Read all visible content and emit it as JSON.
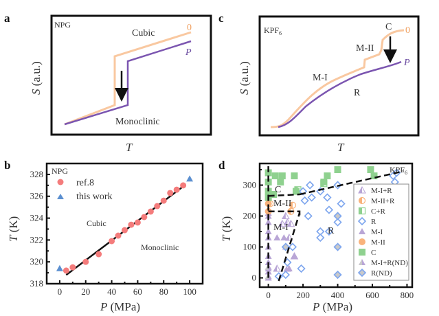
{
  "colors": {
    "orange_curve": "#f9c8a0",
    "purple_curve": "#7b55b0",
    "ref8_marker": "#f47c7c",
    "thiswork_marker": "#5b8fd0",
    "mi_marker": "#b9a6d6",
    "mii_marker": "#f9b37c",
    "c_marker": "#8fd18f",
    "r_marker": "#7ea6ee",
    "nd_fill": "#c9c9c9",
    "orange_label": "#f0a060",
    "purple_label": "#6a4aa0"
  },
  "chart_data": [
    {
      "panel": "a",
      "type": "line",
      "title": "NPG",
      "xlabel": "T",
      "ylabel": "S (a.u.)",
      "annotations": [
        "Cubic",
        "Monoclinic"
      ],
      "series": [
        {
          "name": "0",
          "x": [
            0,
            0.35,
            0.35,
            1.0
          ],
          "y": [
            0,
            0.17,
            0.73,
            0.95
          ]
        },
        {
          "name": "P",
          "x": [
            0,
            0.45,
            0.45,
            1.0
          ],
          "y": [
            0,
            0.13,
            0.64,
            0.87
          ]
        }
      ],
      "arrow": "pressure lowers entropy"
    },
    {
      "panel": "b",
      "type": "scatter",
      "title": "NPG",
      "xlabel": "P (MPa)",
      "ylabel": "T (K)",
      "xlim": [
        -10,
        110
      ],
      "ylim": [
        318,
        329
      ],
      "xticks": [
        0,
        20,
        40,
        60,
        80,
        100
      ],
      "yticks": [
        318,
        320,
        322,
        324,
        326,
        328
      ],
      "legend": [
        "ref.8",
        "this work"
      ],
      "legend_position": "top-left",
      "annotations": [
        "Cubic",
        "Monoclinic"
      ],
      "series": [
        {
          "name": "ref.8",
          "x": [
            5,
            10,
            20,
            30,
            40,
            45,
            50,
            55,
            60,
            65,
            70,
            75,
            80,
            85,
            90,
            95
          ],
          "y": [
            319.2,
            319.5,
            320.0,
            320.7,
            321.9,
            322.4,
            322.9,
            323.4,
            323.6,
            324.1,
            324.6,
            325.1,
            325.6,
            326.3,
            326.6,
            327.0
          ]
        },
        {
          "name": "this work",
          "x": [
            0,
            100
          ],
          "y": [
            319.4,
            327.6
          ]
        }
      ],
      "fit_line": {
        "x": [
          5,
          95
        ],
        "y": [
          318.8,
          326.9
        ]
      }
    },
    {
      "panel": "c",
      "type": "line",
      "title": "KPF6",
      "xlabel": "T",
      "ylabel": "S (a.u.)",
      "annotations": [
        "M-I",
        "M-II",
        "C",
        "R"
      ],
      "series": [
        {
          "name": "0",
          "desc": "sigmoidal rise with steps at M-I→M-II and M-II→C"
        },
        {
          "name": "P",
          "desc": "smooth sigmoidal rise through R phase"
        }
      ]
    },
    {
      "panel": "d",
      "type": "scatter",
      "title": "KPF6",
      "xlabel": "P (MPa)",
      "ylabel": "T (K)",
      "xlim": [
        -50,
        830
      ],
      "ylim": [
        -30,
        370
      ],
      "xticks": [
        0,
        200,
        400,
        600,
        800
      ],
      "yticks": [
        0,
        100,
        200,
        300
      ],
      "legend_position": "right",
      "legend": [
        "M-I+R",
        "M-II+R",
        "C+R",
        "R",
        "M-I",
        "M-II",
        "C",
        "M-I+R(ND)",
        "R(ND)"
      ],
      "annotations": [
        "C",
        "M-II",
        "M-I",
        "R"
      ],
      "series": [
        {
          "name": "M-I+R",
          "x": [
            50,
            80,
            100,
            110,
            120,
            130,
            150,
            110
          ],
          "y": [
            30,
            175,
            200,
            180,
            130,
            175,
            70,
            30
          ]
        },
        {
          "name": "M-II+R",
          "x": [
            10,
            130,
            140
          ],
          "y": [
            240,
            215,
            235
          ]
        },
        {
          "name": "C+R",
          "x": [
            170,
            320
          ],
          "y": [
            285,
            305
          ]
        },
        {
          "name": "R",
          "x": [
            60,
            100,
            110,
            140,
            190,
            200,
            210,
            230,
            240,
            250,
            300,
            300,
            300,
            340,
            350,
            350,
            400,
            400,
            420,
            720,
            730,
            740
          ],
          "y": [
            5,
            10,
            50,
            100,
            30,
            280,
            250,
            200,
            300,
            260,
            280,
            150,
            130,
            260,
            220,
            150,
            300,
            180,
            240,
            330,
            310,
            340
          ]
        },
        {
          "name": "M-I",
          "x": [
            0,
            0,
            0,
            0,
            0,
            0,
            0,
            0,
            0,
            50,
            90,
            100,
            150,
            120,
            0,
            0
          ],
          "y": [
            0,
            30,
            50,
            70,
            100,
            130,
            150,
            180,
            200,
            130,
            130,
            100,
            70,
            30,
            210,
            20
          ]
        },
        {
          "name": "M-II",
          "x": [
            0,
            0,
            0
          ],
          "y": [
            215,
            240,
            255
          ]
        },
        {
          "name": "C",
          "x": [
            0,
            0,
            0,
            0,
            30,
            40,
            70,
            80,
            150,
            160,
            320,
            340,
            400,
            590,
            610
          ],
          "y": [
            260,
            280,
            310,
            340,
            270,
            330,
            310,
            330,
            330,
            280,
            310,
            330,
            350,
            350,
            330
          ]
        },
        {
          "name": "M-I+R(ND)",
          "x": [
            0,
            0
          ],
          "y": [
            5,
            35
          ]
        },
        {
          "name": "R(ND)",
          "x": [
            100,
            400,
            400,
            400
          ],
          "y": [
            100,
            200,
            100,
            10
          ]
        }
      ],
      "boundaries": [
        {
          "x": [
            0,
            0
          ],
          "y": [
            0,
            365
          ]
        },
        {
          "x": [
            0,
            180,
            180
          ],
          "y": [
            215,
            215,
            200
          ]
        },
        {
          "x": [
            0,
            180
          ],
          "y": [
            265,
            270
          ]
        },
        {
          "x": [
            180,
            780
          ],
          "y": [
            270,
            345
          ]
        },
        {
          "x": [
            60,
            180
          ],
          "y": [
            -10,
            210
          ]
        }
      ]
    }
  ],
  "panels": {
    "a": {
      "label": "a",
      "title": "NPG",
      "top_phase": "Cubic",
      "bottom_phase": "Monoclinic",
      "curve0": "0",
      "curveP": "P",
      "xlabel": "T",
      "ylabel_sym": "S",
      "ylabel_unit": " (a.u.)"
    },
    "b": {
      "label": "b",
      "title": "NPG",
      "legend1": "ref.8",
      "legend2": "this work",
      "phase_top": "Cubic",
      "phase_bottom": "Monoclinic",
      "xlabel_sym": "P",
      "xlabel_unit": " (MPa)",
      "ylabel_sym": "T",
      "ylabel_unit": " (K)"
    },
    "c": {
      "label": "c",
      "title_main": "KPF",
      "title_sub": "6",
      "phase_c": "C",
      "phase_mii": "M-II",
      "phase_mi": "M-I",
      "phase_r": "R",
      "curve0": "0",
      "curveP": "P",
      "xlabel": "T",
      "ylabel_sym": "S",
      "ylabel_unit": " (a.u.)"
    },
    "d": {
      "label": "d",
      "title_main": "KPF",
      "title_sub": "6",
      "phase_c": "C",
      "phase_mii": "M-II",
      "phase_mi": "M-I",
      "phase_r": "R",
      "xlabel_sym": "P",
      "xlabel_unit": " (MPa)",
      "ylabel_sym": "T",
      "ylabel_unit": " (K)"
    }
  }
}
